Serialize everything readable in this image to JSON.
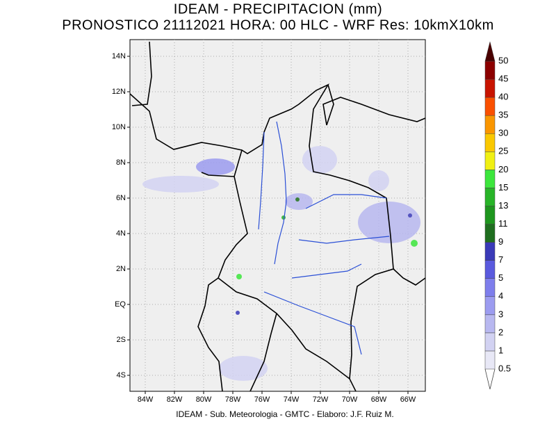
{
  "title": [
    "IDEAM - PRECIPITACION (mm)",
    "PRONOSTICO 21112021 HORA: 00 HLC - WRF Res: 10kmX10km"
  ],
  "map": {
    "lon_ticks": [
      "84W",
      "82W",
      "80W",
      "78W",
      "76W",
      "74W",
      "72W",
      "70W",
      "68W",
      "66W"
    ],
    "lat_ticks": [
      "14N",
      "12N",
      "10N",
      "8N",
      "6N",
      "4N",
      "2N",
      "EQ",
      "2S",
      "4S"
    ]
  },
  "colorbar": {
    "levels": [
      0.5,
      1,
      2,
      3,
      4,
      5,
      7,
      9,
      11,
      13,
      15,
      20,
      25,
      30,
      35,
      40,
      45,
      50
    ],
    "colors": [
      "#e8e8f6",
      "#d2d2f2",
      "#b8b8f0",
      "#9c9cf0",
      "#7e7eec",
      "#5a5ade",
      "#3a3ab8",
      "#1f6e1f",
      "#1e961e",
      "#28b428",
      "#3ce63c",
      "#f0f014",
      "#fac800",
      "#fa9600",
      "#fa5000",
      "#c81400",
      "#8c0000"
    ],
    "top_color": "#4a0000"
  },
  "footer": "IDEAM - Sub. Meteorologia - GMTC - Elaboro: J.F. Ruiz M."
}
